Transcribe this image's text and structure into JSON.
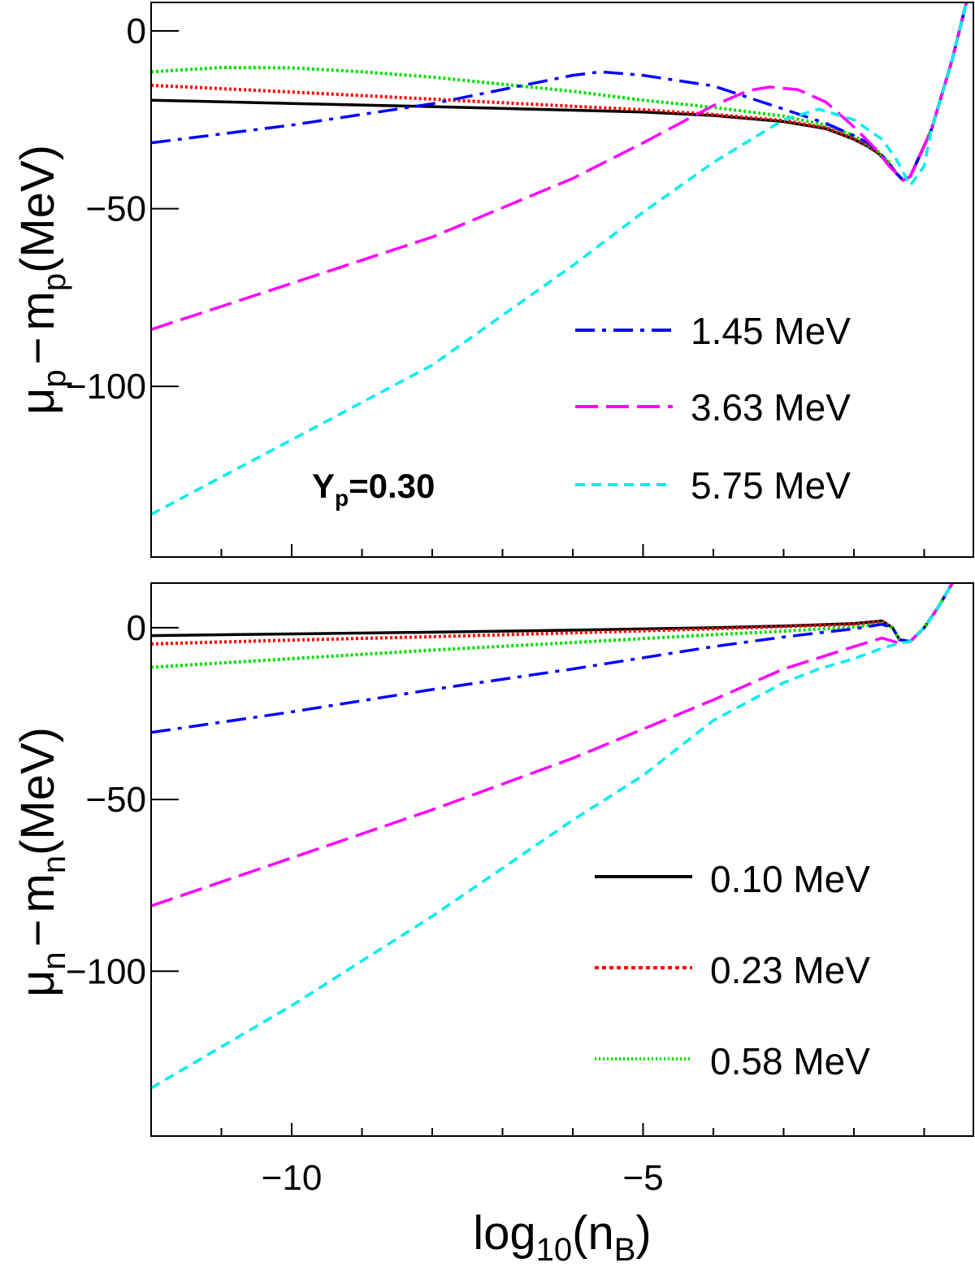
{
  "chart_data": [
    {
      "type": "line",
      "panel": "top",
      "ylabel": "μ_p − m_p(MeV)",
      "ylabel_parts": {
        "mu": "μ",
        "mu_sub": "p",
        "dash": "−",
        "m": "m",
        "m_sub": "p",
        "unit": "(MeV)"
      },
      "xlim": [
        -12,
        -0.3
      ],
      "ylim": [
        -148,
        8
      ],
      "yticks": [
        0,
        -50,
        -100
      ],
      "ytick_labels": [
        "0",
        "−50",
        "−100"
      ],
      "annotation": {
        "main": "Y",
        "sub": "p",
        "rest": "=0.30"
      },
      "legend": [
        "1.45 MeV",
        "3.63 MeV",
        "5.75 MeV"
      ],
      "series": [
        {
          "name": "0.10 MeV",
          "color": "#000000",
          "style": "solid",
          "x": [
            -12,
            -10,
            -8,
            -6,
            -5,
            -4,
            -3,
            -2.4,
            -2,
            -1.8,
            -1.65,
            -1.5,
            -1.4,
            -1.3,
            -1.2,
            -0.9,
            -0.6,
            -0.4
          ],
          "y": [
            -19.5,
            -20.4,
            -21.3,
            -22.3,
            -22.8,
            -23.8,
            -25.5,
            -27.5,
            -30.5,
            -32.5,
            -34.5,
            -37.5,
            -40,
            -42,
            -41,
            -28,
            -8,
            8
          ]
        },
        {
          "name": "0.23 MeV",
          "color": "#ff0000",
          "style": "dotted",
          "x": [
            -12,
            -10,
            -8,
            -6,
            -5,
            -4,
            -3,
            -2.4,
            -2,
            -1.8,
            -1.65,
            -1.5,
            -1.4,
            -1.3,
            -1.2,
            -0.9,
            -0.6,
            -0.4
          ],
          "y": [
            -15.3,
            -17.2,
            -19.2,
            -21.2,
            -22.2,
            -23.5,
            -25.2,
            -27.2,
            -30.3,
            -32.3,
            -34.3,
            -37.3,
            -40,
            -42,
            -41,
            -28,
            -8,
            8
          ]
        },
        {
          "name": "0.58 MeV",
          "color": "#00dd00",
          "style": "dotted",
          "x": [
            -12,
            -11,
            -10,
            -9,
            -8,
            -7,
            -6,
            -5,
            -4,
            -3,
            -2.4,
            -2,
            -1.8,
            -1.65,
            -1.5,
            -1.4,
            -1.3,
            -1.2,
            -0.9,
            -0.6,
            -0.4
          ],
          "y": [
            -11.5,
            -10.3,
            -10.4,
            -11.5,
            -13,
            -15,
            -17,
            -19.5,
            -21.5,
            -24,
            -26.5,
            -29.5,
            -32,
            -34,
            -37,
            -40,
            -42,
            -41,
            -28,
            -8,
            8
          ]
        },
        {
          "name": "1.45 MeV",
          "color": "#0000ff",
          "style": "dashdot",
          "x": [
            -12,
            -10,
            -8,
            -7,
            -6,
            -5.6,
            -5,
            -4,
            -3,
            -2.4,
            -2,
            -1.8,
            -1.6,
            -1.4,
            -1.3,
            -1.2,
            -0.9,
            -0.6,
            -0.4
          ],
          "y": [
            -31.5,
            -26.5,
            -20.5,
            -16.5,
            -12.5,
            -11.5,
            -12.5,
            -15.5,
            -22,
            -26,
            -29.5,
            -31.5,
            -35,
            -40,
            -42,
            -41,
            -28,
            -8,
            8
          ]
        },
        {
          "name": "3.63 MeV",
          "color": "#ff00ff",
          "style": "longdash",
          "x": [
            -12,
            -10,
            -8,
            -6,
            -5,
            -4,
            -3.5,
            -3.2,
            -2.8,
            -2.4,
            -2,
            -1.7,
            -1.5,
            -1.3,
            -1.2,
            -0.9,
            -0.6,
            -0.4
          ],
          "y": [
            -84,
            -71,
            -58,
            -41.5,
            -31.5,
            -21,
            -16.8,
            -15.8,
            -16.5,
            -20,
            -27,
            -33,
            -38,
            -42,
            -41,
            -28,
            -8,
            8
          ]
        },
        {
          "name": "5.75 MeV",
          "color": "#00eeee",
          "style": "dashed",
          "x": [
            -12,
            -10,
            -8,
            -6,
            -5,
            -4,
            -3.5,
            -3,
            -2.5,
            -2,
            -1.6,
            -1.4,
            -1.2,
            -1.0,
            -0.9,
            -0.6,
            -0.4
          ],
          "y": [
            -136,
            -115,
            -94,
            -66,
            -51,
            -37,
            -31,
            -25,
            -22,
            -25,
            -30.5,
            -36,
            -43.5,
            -38,
            -28,
            -8,
            8
          ]
        }
      ]
    },
    {
      "type": "line",
      "panel": "bottom",
      "ylabel": "μ_n − m_n(MeV)",
      "ylabel_parts": {
        "mu": "μ",
        "mu_sub": "n",
        "dash": "−",
        "m": "m",
        "m_sub": "n",
        "unit": "(MeV)"
      },
      "xlabel": "log10(nB)",
      "xlabel_parts": {
        "main": "log",
        "sub1": "10",
        "open": "(n",
        "sub2": "B",
        "close": ")"
      },
      "xlim": [
        -12,
        -0.3
      ],
      "ylim": [
        -148,
        13
      ],
      "xticks": [
        -10,
        -5
      ],
      "xtick_labels": [
        "−10",
        "−5"
      ],
      "yticks": [
        0,
        -50,
        -100
      ],
      "ytick_labels": [
        "0",
        "−50",
        "−100"
      ],
      "legend": [
        "0.10 MeV",
        "0.23 MeV",
        "0.58 MeV"
      ],
      "series": [
        {
          "name": "0.10 MeV",
          "color": "#000000",
          "style": "solid",
          "x": [
            -12,
            -10,
            -8,
            -6,
            -4,
            -3,
            -2,
            -1.6,
            -1.45,
            -1.35,
            -1.2,
            -1.0,
            -0.8,
            -0.6
          ],
          "y": [
            -2.3,
            -1.8,
            -1.3,
            -0.7,
            0,
            0.5,
            1.2,
            2,
            0,
            -3.5,
            -4,
            0,
            6,
            13
          ]
        },
        {
          "name": "0.23 MeV",
          "color": "#ff0000",
          "style": "dotted",
          "x": [
            -12,
            -10,
            -8,
            -6,
            -4,
            -3,
            -2,
            -1.6,
            -1.45,
            -1.35,
            -1.2,
            -1.0,
            -0.8,
            -0.6
          ],
          "y": [
            -4.7,
            -3.6,
            -2.6,
            -1.5,
            -0.3,
            0.3,
            1,
            1.8,
            0,
            -3.5,
            -4,
            0,
            6,
            13
          ]
        },
        {
          "name": "0.58 MeV",
          "color": "#00dd00",
          "style": "dotted",
          "x": [
            -12,
            -10,
            -8,
            -6,
            -4,
            -3,
            -2,
            -1.6,
            -1.45,
            -1.35,
            -1.2,
            -1.0,
            -0.8,
            -0.6
          ],
          "y": [
            -11.5,
            -9,
            -6.5,
            -4.3,
            -2,
            -1,
            0.2,
            1.2,
            0,
            -3.5,
            -4,
            0,
            6,
            13
          ]
        },
        {
          "name": "1.45 MeV",
          "color": "#0000ff",
          "style": "dashdot",
          "x": [
            -12,
            -10,
            -8,
            -6,
            -4,
            -3,
            -2,
            -1.6,
            -1.45,
            -1.35,
            -1.2,
            -1.0,
            -0.8,
            -0.6
          ],
          "y": [
            -30.5,
            -24.5,
            -18,
            -12,
            -5.5,
            -2.7,
            -0.3,
            1,
            0,
            -3.5,
            -4,
            0,
            6,
            13
          ]
        },
        {
          "name": "3.63 MeV",
          "color": "#ff00ff",
          "style": "longdash",
          "x": [
            -12,
            -10,
            -8,
            -6,
            -4,
            -3,
            -2,
            -1.6,
            -1.35,
            -1.2,
            -1.0,
            -0.8,
            -0.6
          ],
          "y": [
            -81,
            -67,
            -53,
            -38,
            -21,
            -12,
            -5.5,
            -3,
            -4.5,
            -4,
            0,
            6,
            13
          ]
        },
        {
          "name": "5.75 MeV",
          "color": "#00eeee",
          "style": "dashed",
          "x": [
            -12,
            -10,
            -8,
            -6,
            -5,
            -4,
            -3,
            -2.5,
            -2,
            -1.6,
            -1.35,
            -1.2,
            -1.0,
            -0.8,
            -0.6
          ],
          "y": [
            -134,
            -110,
            -84,
            -56,
            -43,
            -27,
            -16,
            -12,
            -9,
            -6,
            -4.5,
            -4,
            0,
            6,
            13
          ]
        }
      ]
    }
  ]
}
